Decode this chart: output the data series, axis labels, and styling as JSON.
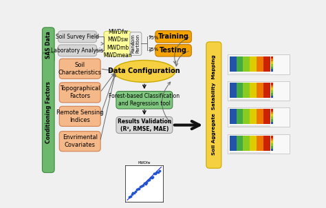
{
  "bg_color": "#f0f0f0",
  "fig_width": 4.74,
  "fig_height": 3.02,
  "dpi": 100,
  "sas_label": "SAS Data",
  "sas_box_color": "#6db86d",
  "sas_box_edge": "#3a8a3a",
  "soil_survey_text": "Soil Survey Field",
  "lab_analysis_text": "Laboratory Analysis",
  "gray_box_color": "#d5d5d5",
  "gray_box_edge": "#aaaaaa",
  "mwd_box_text": "MWDfw\nMWDsw\nMWDmb\nMWDmean",
  "mwd_box_color": "#ffff99",
  "mwd_box_edge": "#cccc55",
  "random_text": "Random\nPartition",
  "random_box_color": "#eeeeee",
  "random_box_edge": "#aaaaaa",
  "pct75_text": "75%",
  "pct25_text": "25%",
  "training_text": "Training",
  "testing_text": "Testing",
  "orange_box_color": "#f5a300",
  "orange_box_edge": "#c07800",
  "conditioning_label": "Conditioning Factors",
  "conditioning_box_color": "#6db86d",
  "conditioning_box_edge": "#3a8a3a",
  "factors": [
    {
      "text": "Soil\nCharacteristics"
    },
    {
      "text": "Topographical\nFactors"
    },
    {
      "text": "Remote Sensing\nIndices"
    },
    {
      "text": "Envrimental\nCovariates"
    }
  ],
  "factor_box_color": "#f5b888",
  "factor_box_edge": "#d08050",
  "data_config_text": "Data Configuration",
  "ellipse_color": "#f5d040",
  "ellipse_edge": "#c8aa00",
  "forest_box_text": "Forest-based Classification\nand Regression tool",
  "forest_box_color": "#80c880",
  "forest_box_edge": "#408040",
  "results_box_text": "Results Validation\n(R², RMSE, MAE)",
  "results_box_color": "#d8d8d8",
  "results_box_edge": "#999999",
  "soil_agg_label": "Soil Aggregate  Satability  Mapping",
  "soil_agg_box_color": "#f5d040",
  "soil_agg_box_edge": "#c8aa00",
  "arrow_color": "#666666",
  "arrow_color_dark": "#111111",
  "xlim": [
    0,
    10
  ],
  "ylim": [
    0,
    6.4
  ]
}
